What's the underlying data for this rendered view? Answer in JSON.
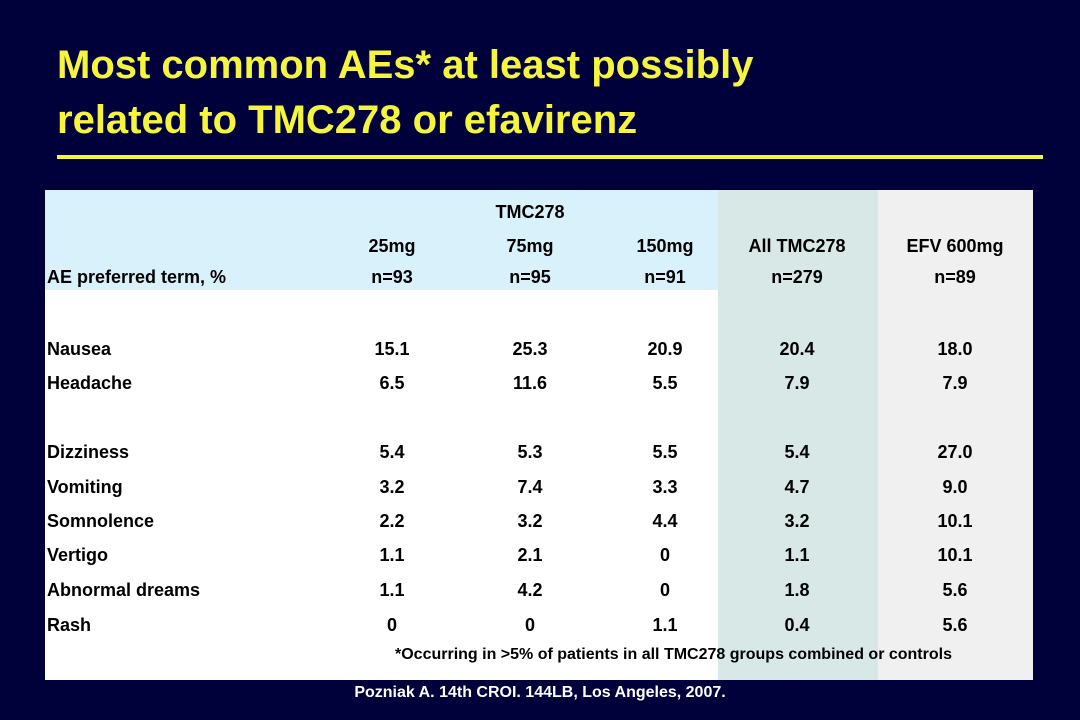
{
  "header": {
    "title": [
      "Most common AEs* at least possibly",
      "related to TMC278 or efavirenz"
    ]
  },
  "table": {
    "group_header": "TMC278",
    "columns": [
      {
        "label": "AE preferred term, %"
      },
      {
        "label": "25mg",
        "n": "n=93"
      },
      {
        "label": "75mg",
        "n": "n=95"
      },
      {
        "label": "150mg",
        "n": "n=91"
      },
      {
        "label": "All TMC278",
        "n": "n=279"
      },
      {
        "label": "EFV 600mg",
        "n": "n=89"
      }
    ],
    "rows": [
      [
        "Nausea",
        "15.1",
        "25.3",
        "20.9",
        "20.4",
        "18.0"
      ],
      [
        "Headache",
        "6.5",
        "11.6",
        "5.5",
        "7.9",
        "7.9"
      ],
      [
        "Dizziness",
        "5.4",
        "5.3",
        "5.5",
        "5.4",
        "27.0"
      ],
      [
        "Vomiting",
        "3.2",
        "7.4",
        "3.3",
        "4.7",
        "9.0"
      ],
      [
        "Somnolence",
        "2.2",
        "3.2",
        "4.4",
        "3.2",
        "10.1"
      ],
      [
        "Vertigo",
        "1.1",
        "2.1",
        "0",
        "1.1",
        "10.1"
      ],
      [
        "Abnormal dreams",
        "1.1",
        "4.2",
        "0",
        "1.8",
        "5.6"
      ],
      [
        "Rash",
        "0",
        "0",
        "1.1",
        "0.4",
        "5.6"
      ]
    ],
    "footnote": "*Occurring in >5% of patients in all TMC278 groups combined or controls"
  },
  "citation": "Pozniak A. 14th CROI. 144LB, Los Angeles, 2007."
}
